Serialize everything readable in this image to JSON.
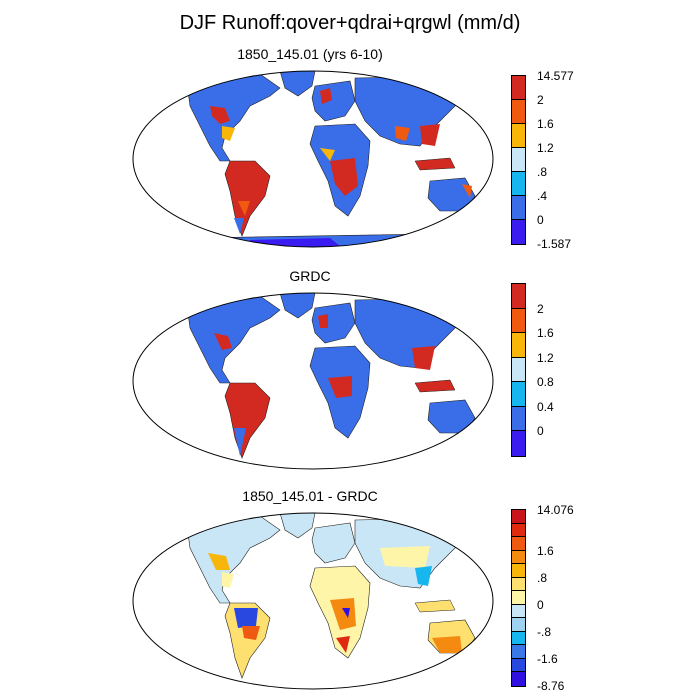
{
  "title": "DJF Runoff:qover+qdrai+qrgwl (mm/d)",
  "panels": [
    {
      "title": "1850_145.01 (yrs 6-10)",
      "colorbar": {
        "colors": [
          "#3a1cf0",
          "#3a6ee8",
          "#17b6ee",
          "#c9e6f6",
          "#f8b50a",
          "#f05a10",
          "#d22a20"
        ],
        "labels": [
          "-1.587",
          "0",
          ".4",
          ".8",
          "1.2",
          "1.6",
          "2",
          "14.577"
        ]
      },
      "land_color": "#3a6ee8",
      "hot_color": "#d22a20"
    },
    {
      "title": "GRDC",
      "colorbar": {
        "colors": [
          "#3a1cf0",
          "#3a6ee8",
          "#17b6ee",
          "#c9e6f6",
          "#f8b50a",
          "#f05a10",
          "#d22a20"
        ],
        "labels": [
          "",
          "0",
          "0.4",
          "0.8",
          "1.2",
          "1.6",
          "2",
          ""
        ]
      },
      "land_color": "#3a6ee8",
      "hot_color": "#d22a20"
    },
    {
      "title": "1850_145.01 - GRDC",
      "colorbar": {
        "colors": [
          "#3010e0",
          "#2848e0",
          "#3a78e8",
          "#17b6ee",
          "#9fd2f0",
          "#c9e6f6",
          "#fff5a8",
          "#fde070",
          "#f8b50a",
          "#f58a10",
          "#f05a10",
          "#e02a10",
          "#c8141a"
        ],
        "labels": [
          "-8.76",
          "",
          "-1.6",
          "",
          "-.8",
          "",
          "0",
          "",
          ".8",
          "",
          "1.6",
          "",
          "",
          "14.076"
        ]
      },
      "land_color": "#c9e6f6",
      "hot_color": "#f05a10"
    }
  ]
}
